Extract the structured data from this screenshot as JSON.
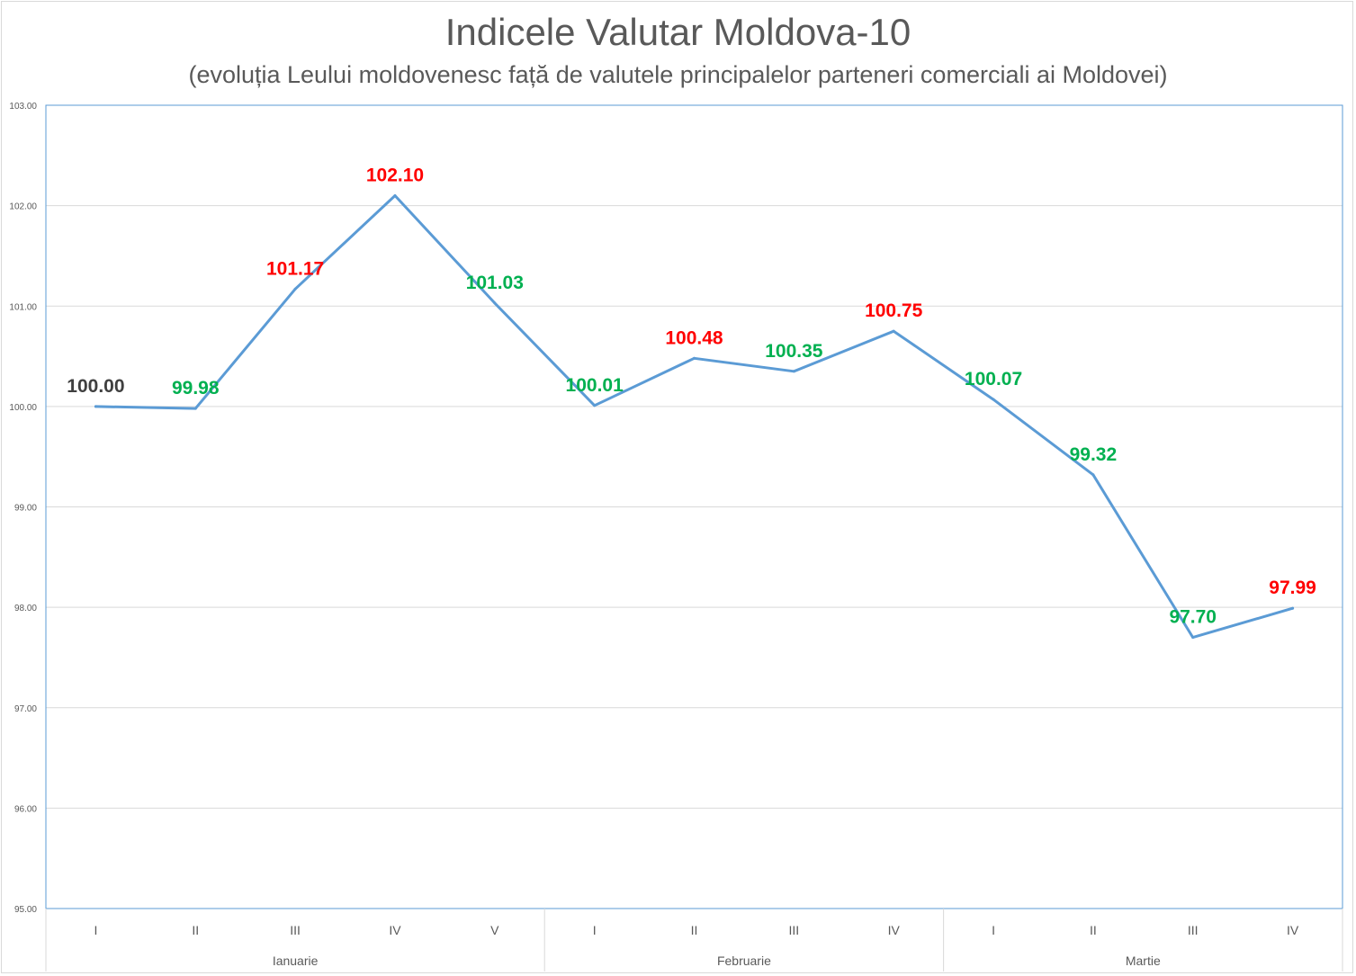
{
  "chart_data": {
    "type": "line",
    "title": "Indicele Valutar Moldova-10",
    "subtitle": "(evoluția Leului moldovenesc față de valutele principalelor parteneri comerciali ai Moldovei)",
    "xlabel": "",
    "ylabel": "",
    "ylim": [
      95,
      103
    ],
    "yticks": [
      "95.00",
      "96.00",
      "97.00",
      "98.00",
      "99.00",
      "100.00",
      "101.00",
      "102.00",
      "103.00"
    ],
    "grid": true,
    "legend": "none",
    "groups": [
      {
        "name": "Ianuarie",
        "categories": [
          "I",
          "II",
          "III",
          "IV",
          "V"
        ]
      },
      {
        "name": "Februarie",
        "categories": [
          "I",
          "II",
          "III",
          "IV"
        ]
      },
      {
        "name": "Martie",
        "categories": [
          "I",
          "II",
          "III",
          "IV"
        ]
      }
    ],
    "series": [
      {
        "values": [
          100.0,
          99.98,
          101.17,
          102.1,
          101.03,
          100.01,
          100.48,
          100.35,
          100.75,
          100.07,
          99.32,
          97.7,
          97.99
        ],
        "labels": [
          "100.00",
          "99.98",
          "101.17",
          "102.10",
          "101.03",
          "100.01",
          "100.48",
          "100.35",
          "100.75",
          "100.07",
          "99.32",
          "97.70",
          "97.99"
        ],
        "label_colors": [
          "#404040",
          "#00b050",
          "#ff0000",
          "#ff0000",
          "#00b050",
          "#00b050",
          "#ff0000",
          "#00b050",
          "#ff0000",
          "#00b050",
          "#00b050",
          "#00b050",
          "#ff0000"
        ],
        "color": "#5b9bd5"
      }
    ]
  },
  "colors": {
    "line": "#5b9bd5",
    "plot_border": "#5b9bd5",
    "gridline": "#d9d9d9",
    "axis_text": "#595959",
    "label_up": "#ff0000",
    "label_down": "#00b050",
    "label_base": "#404040"
  }
}
